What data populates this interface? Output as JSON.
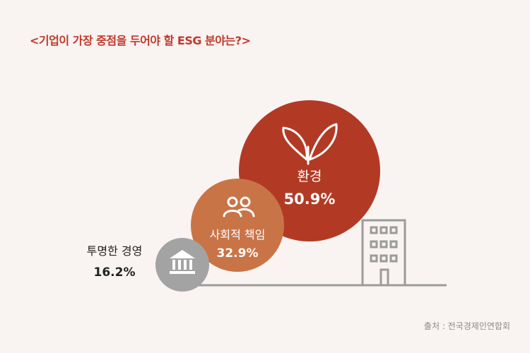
{
  "title": "<기업이 가장 중점을 두어야 할 ESG 분야는?>",
  "source": "출처 : 전국경제인연합회",
  "colors": {
    "background": "#f9f3f1",
    "title": "#c0392b",
    "environment": "#b23a24",
    "social": "#c97447",
    "governance": "#a3a3a3",
    "building": "#9b9b9b"
  },
  "chart_data": {
    "type": "bubble",
    "title": "<기업이 가장 중점을 두어야 할 ESG 분야는?>",
    "series": [
      {
        "label": "환경",
        "value": 50.9,
        "value_label": "50.9%",
        "icon": "leaf-icon",
        "color": "#b23a24"
      },
      {
        "label": "사회적 책임",
        "value": 32.9,
        "value_label": "32.9%",
        "icon": "people-icon",
        "color": "#c97447"
      },
      {
        "label": "투명한 경영",
        "value": 16.2,
        "value_label": "16.2%",
        "icon": "bank-icon",
        "color": "#a3a3a3"
      }
    ]
  }
}
